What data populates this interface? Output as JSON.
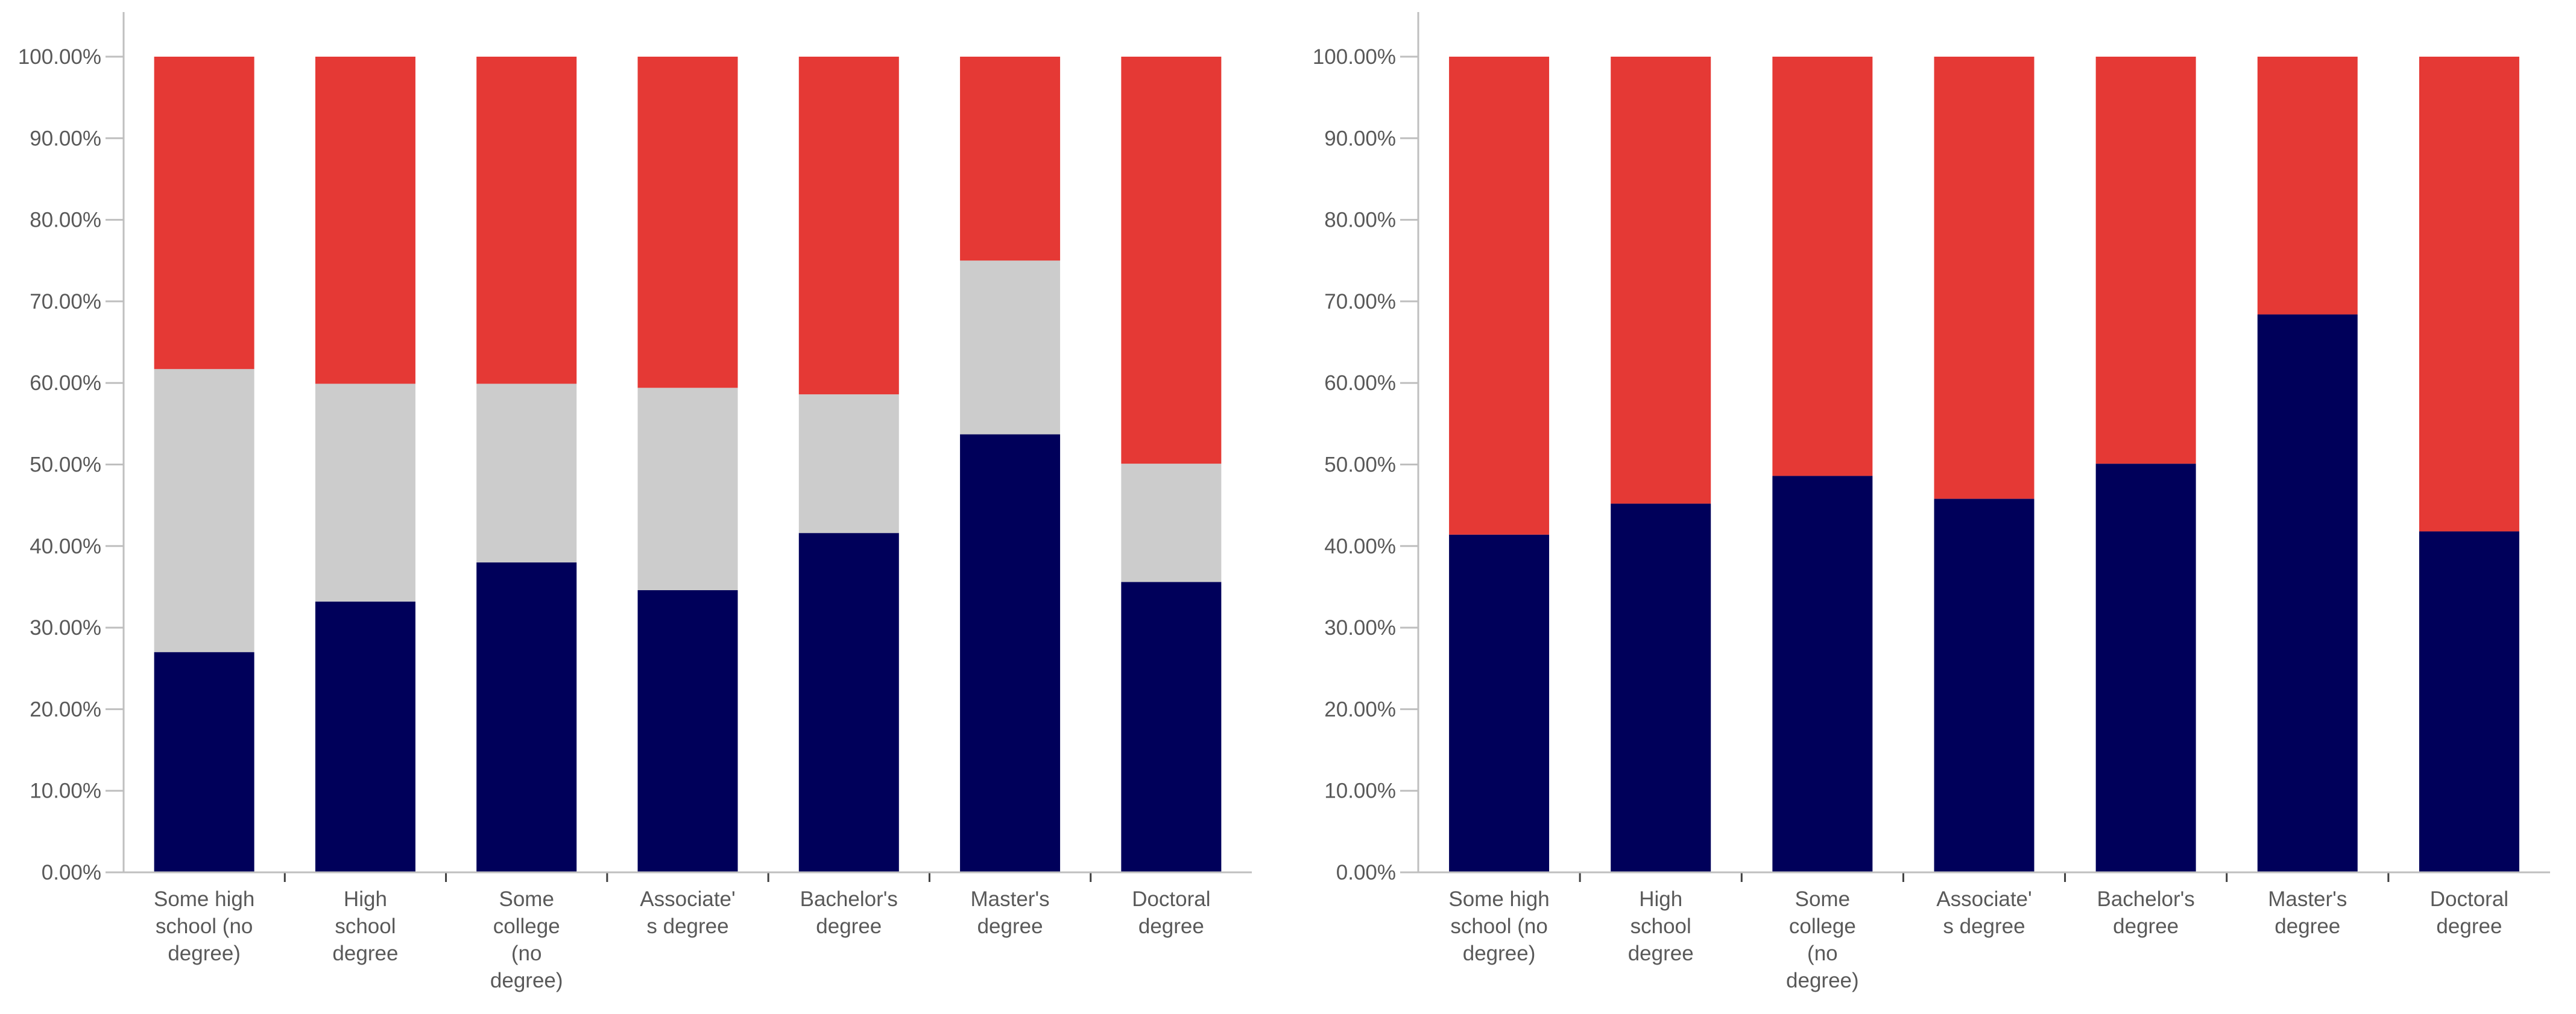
{
  "chart_data": [
    {
      "type": "bar",
      "stacked": true,
      "percent": true,
      "categories": [
        [
          "Some high",
          "school (no",
          "degree)"
        ],
        [
          "High",
          "school",
          "degree"
        ],
        [
          "Some",
          "college",
          "(no",
          "degree)"
        ],
        [
          "Associate'",
          "s degree"
        ],
        [
          "Bachelor's",
          "degree"
        ],
        [
          "Master's",
          "degree"
        ],
        [
          "Doctoral",
          "degree"
        ]
      ],
      "series": [
        {
          "name": "series-1",
          "color": "#00005a",
          "values": [
            27,
            33.2,
            38,
            34.6,
            41.6,
            53.7,
            35.6
          ]
        },
        {
          "name": "series-2",
          "color": "#cccccc",
          "values": [
            34.7,
            26.7,
            21.9,
            24.8,
            17,
            21.3,
            14.5
          ]
        },
        {
          "name": "series-3",
          "color": "#e53935",
          "values": [
            38.3,
            40.1,
            40.1,
            40.6,
            41.4,
            25,
            49.9
          ]
        }
      ],
      "ylim": [
        0,
        100
      ],
      "yticks": [
        "0.00%",
        "10.00%",
        "20.00%",
        "30.00%",
        "40.00%",
        "50.00%",
        "60.00%",
        "70.00%",
        "80.00%",
        "90.00%",
        "100.00%"
      ],
      "title": "",
      "xlabel": "",
      "ylabel": "",
      "legend": "none",
      "grid": false
    },
    {
      "type": "bar",
      "stacked": true,
      "percent": true,
      "categories": [
        [
          "Some high",
          "school (no",
          "degree)"
        ],
        [
          "High",
          "school",
          "degree"
        ],
        [
          "Some",
          "college",
          "(no",
          "degree)"
        ],
        [
          "Associate'",
          "s degree"
        ],
        [
          "Bachelor's",
          "degree"
        ],
        [
          "Master's",
          "degree"
        ],
        [
          "Doctoral",
          "degree"
        ]
      ],
      "series": [
        {
          "name": "series-1",
          "color": "#00005a",
          "values": [
            41.4,
            45.2,
            48.6,
            45.8,
            50.1,
            68.4,
            41.8
          ]
        },
        {
          "name": "series-2",
          "color": "#e53935",
          "values": [
            58.6,
            54.8,
            51.4,
            54.2,
            49.9,
            31.6,
            58.2
          ]
        }
      ],
      "ylim": [
        0,
        100
      ],
      "yticks": [
        "0.00%",
        "10.00%",
        "20.00%",
        "30.00%",
        "40.00%",
        "50.00%",
        "60.00%",
        "70.00%",
        "80.00%",
        "90.00%",
        "100.00%"
      ],
      "title": "",
      "xlabel": "",
      "ylabel": "",
      "legend": "none",
      "grid": false
    }
  ]
}
